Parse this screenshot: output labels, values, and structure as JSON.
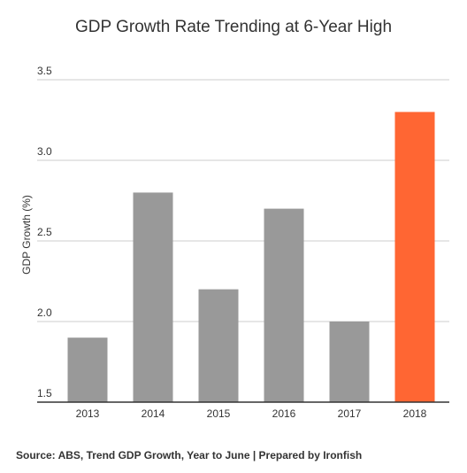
{
  "chart_data": {
    "type": "bar",
    "title": "GDP Growth Rate Trending at 6-Year High",
    "ylabel": "GDP Growth (%)",
    "xlabel": "",
    "categories": [
      "2013",
      "2014",
      "2015",
      "2016",
      "2017",
      "2018"
    ],
    "values": [
      1.9,
      2.8,
      2.2,
      2.7,
      2.0,
      3.3
    ],
    "ylim": [
      1.5,
      3.5
    ],
    "yticks": [
      "1.5",
      "2.0",
      "2.5",
      "3.0",
      "3.5"
    ],
    "grid": true,
    "legend": "none",
    "colors": {
      "default_bar": "#999999",
      "highlight_bar": "#ff6633",
      "gridline": "#cccccc",
      "axis": "#333333"
    },
    "highlight_index": 5
  },
  "source_note": "Source: ABS, Trend GDP Growth, Year to June | Prepared by Ironfish"
}
